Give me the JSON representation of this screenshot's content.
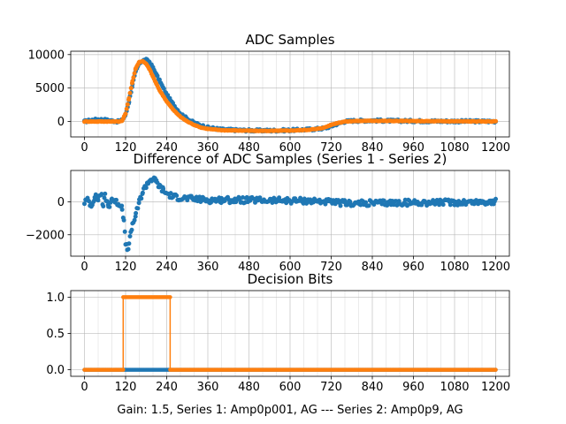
{
  "figure_label": "Gain: 1.5, Series 1: Amp0p001, AG --- Series 2: Amp0p9, AG",
  "colors": {
    "series1": "#1f77b4",
    "series2": "#ff7f0e",
    "grid": "#b0b0b0"
  },
  "chart_data": [
    {
      "type": "scatter",
      "title": "ADC Samples",
      "xlim": [
        -40,
        1240
      ],
      "ylim": [
        -2300,
        10500
      ],
      "xticks": [
        0,
        120,
        240,
        360,
        480,
        600,
        720,
        840,
        960,
        1080,
        1200
      ],
      "xtick_labels": [
        "0",
        "120",
        "240",
        "360",
        "480",
        "600",
        "720",
        "840",
        "960",
        "1080",
        "1200"
      ],
      "yticks": [
        0,
        5000,
        10000
      ],
      "ytick_labels": [
        "0",
        "5000",
        "10000"
      ],
      "grid": true,
      "series": [
        {
          "name": "Series 1",
          "x": [
            0,
            20,
            40,
            60,
            80,
            100,
            110,
            120,
            130,
            140,
            150,
            160,
            170,
            180,
            190,
            200,
            210,
            220,
            240,
            260,
            280,
            300,
            320,
            340,
            360,
            400,
            450,
            500,
            550,
            600,
            650,
            680,
            700,
            720,
            740,
            760,
            780,
            800,
            840,
            900,
            960,
            1020,
            1080,
            1140,
            1200
          ],
          "y": [
            0,
            200,
            300,
            250,
            100,
            0,
            200,
            1000,
            3000,
            5500,
            7500,
            8700,
            9100,
            9200,
            8900,
            8000,
            7000,
            6000,
            4000,
            2500,
            1200,
            400,
            -200,
            -600,
            -900,
            -1200,
            -1300,
            -1350,
            -1350,
            -1300,
            -1200,
            -1100,
            -1000,
            -700,
            -300,
            0,
            100,
            120,
            150,
            100,
            80,
            50,
            40,
            30,
            20
          ]
        },
        {
          "name": "Series 2",
          "x": [
            0,
            20,
            40,
            60,
            80,
            100,
            110,
            120,
            130,
            140,
            150,
            160,
            170,
            180,
            190,
            200,
            210,
            220,
            240,
            260,
            280,
            300,
            320,
            340,
            360,
            400,
            450,
            500,
            550,
            600,
            650,
            680,
            700,
            720,
            740,
            760,
            780,
            800,
            840,
            900,
            960,
            1020,
            1080,
            1140,
            1200
          ],
          "y": [
            0,
            0,
            0,
            0,
            0,
            0,
            100,
            1200,
            3500,
            6000,
            8000,
            8900,
            9000,
            8600,
            7800,
            6700,
            5600,
            4600,
            3000,
            1700,
            700,
            0,
            -500,
            -900,
            -1100,
            -1300,
            -1350,
            -1400,
            -1400,
            -1350,
            -1250,
            -1100,
            -900,
            -500,
            -200,
            0,
            50,
            80,
            100,
            80,
            60,
            40,
            30,
            20,
            10
          ]
        }
      ]
    },
    {
      "type": "scatter",
      "title": "Difference of ADC Samples (Series 1 - Series 2)",
      "xlim": [
        -40,
        1240
      ],
      "ylim": [
        -3300,
        1900
      ],
      "xticks": [
        0,
        120,
        240,
        360,
        480,
        600,
        720,
        840,
        960,
        1080,
        1200
      ],
      "xtick_labels": [
        "0",
        "120",
        "240",
        "360",
        "480",
        "600",
        "720",
        "840",
        "960",
        "1080",
        "1200"
      ],
      "yticks": [
        -2000,
        0
      ],
      "ytick_labels": [
        "−2000",
        "0"
      ],
      "grid": true,
      "series": [
        {
          "name": "Series 1 - Series 2",
          "x": [
            0,
            10,
            20,
            30,
            40,
            50,
            55,
            60,
            70,
            80,
            90,
            100,
            110,
            115,
            120,
            125,
            130,
            135,
            140,
            150,
            160,
            170,
            180,
            190,
            200,
            210,
            220,
            230,
            240,
            260,
            280,
            300,
            330,
            360,
            400,
            450,
            500,
            550,
            600,
            650,
            700,
            720,
            760,
            800,
            850,
            900,
            960,
            1020,
            1080,
            1140,
            1200
          ],
          "y": [
            0,
            100,
            -200,
            300,
            200,
            500,
            -400,
            400,
            -300,
            200,
            0,
            -100,
            -300,
            -1200,
            -2500,
            -2900,
            -2600,
            -2000,
            -1400,
            -800,
            0,
            600,
            1000,
            1300,
            1400,
            1200,
            900,
            700,
            500,
            300,
            250,
            200,
            150,
            100,
            120,
            100,
            90,
            80,
            70,
            60,
            20,
            -50,
            -80,
            -100,
            -80,
            -60,
            -50,
            -40,
            -30,
            -20,
            0
          ]
        }
      ]
    },
    {
      "type": "line",
      "title": "Decision Bits",
      "xlim": [
        -40,
        1240
      ],
      "ylim": [
        -0.09,
        1.09
      ],
      "xticks": [
        0,
        120,
        240,
        360,
        480,
        600,
        720,
        840,
        960,
        1080,
        1200
      ],
      "xtick_labels": [
        "0",
        "120",
        "240",
        "360",
        "480",
        "600",
        "720",
        "840",
        "960",
        "1080",
        "1200"
      ],
      "yticks": [
        0.0,
        0.5,
        1.0
      ],
      "ytick_labels": [
        "0.0",
        "0.5",
        "1.0"
      ],
      "grid": true,
      "xlabel": "Gain: 1.5, Series 1: Amp0p001, AG --- Series 2: Amp0p9, AG",
      "series": [
        {
          "name": "Series 1",
          "x": [
            0,
            1200
          ],
          "y": [
            0,
            0
          ]
        },
        {
          "name": "Series 2",
          "x": [
            0,
            113,
            113,
            250,
            250,
            1200
          ],
          "y": [
            0,
            0,
            1,
            1,
            0,
            0
          ]
        }
      ]
    }
  ]
}
